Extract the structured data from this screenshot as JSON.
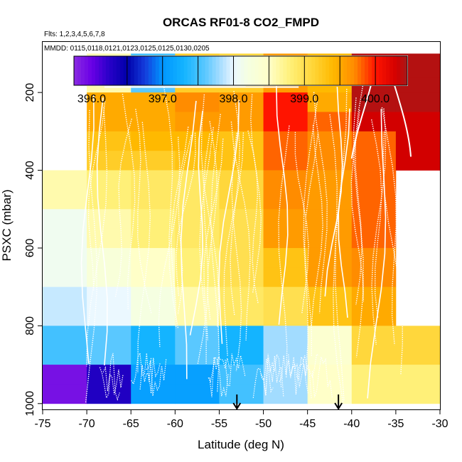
{
  "chart_data": {
    "type": "heatmap",
    "title": "ORCAS RF01-8 CO2_FMPD",
    "flights_label": "Flts: 1,2,3,4,5,6,7,8",
    "mmdd_label": "MMDD: 0115,0118,0121,0123,0125,0125,0130,0205",
    "xlabel": "Latitude (deg N)",
    "ylabel": "PSXC (mbar)",
    "xlim": [
      -75,
      -30
    ],
    "ylim": [
      1015,
      70
    ],
    "x_ticks": [
      -75,
      -70,
      -65,
      -60,
      -55,
      -50,
      -45,
      -40,
      -35,
      -30
    ],
    "x_tick_labels": [
      "-75",
      "-70",
      "-65",
      "-60",
      "-55",
      "-50",
      "-45",
      "-40",
      "-35",
      "-30"
    ],
    "y_ticks": [
      200,
      400,
      600,
      800,
      1000
    ],
    "y_tick_labels": [
      "200",
      "400",
      "600",
      "800",
      "1000"
    ],
    "colorbar": {
      "min": 395.75,
      "max": 400.45,
      "ticks": [
        396.0,
        397.0,
        398.0,
        399.0,
        400.0
      ],
      "tick_labels": [
        "396.0",
        "397.0",
        "398.0",
        "399.0",
        "400.0"
      ],
      "major_lines": [
        396.5,
        397.0,
        397.5,
        398.0,
        398.5,
        399.0,
        399.5,
        400.0
      ]
    },
    "x_bins": [
      -75,
      -70,
      -65,
      -60,
      -55,
      -50,
      -45,
      -40,
      -35
    ],
    "x_bin_width": 5,
    "p_bins": [
      [
        100,
        160
      ],
      [
        160,
        200
      ],
      [
        200,
        250
      ],
      [
        250,
        300
      ],
      [
        300,
        350
      ],
      [
        350,
        400
      ],
      [
        400,
        450
      ],
      [
        450,
        500
      ],
      [
        500,
        550
      ],
      [
        550,
        600
      ],
      [
        600,
        650
      ],
      [
        650,
        700
      ],
      [
        700,
        750
      ],
      [
        750,
        800
      ],
      [
        800,
        850
      ],
      [
        850,
        900
      ],
      [
        900,
        950
      ],
      [
        950,
        1000
      ]
    ],
    "cells": [
      [
        null,
        398.6,
        397.5,
        399.2,
        399.1,
        399.6,
        399.4,
        400.4,
        400.4
      ],
      [
        null,
        398.6,
        397.6,
        399.2,
        399.2,
        399.6,
        399.4,
        400.4,
        400.4
      ],
      [
        null,
        399.5,
        399.5,
        399.7,
        399.6,
        400.0,
        399.5,
        400.4,
        400.4
      ],
      [
        null,
        399.5,
        399.5,
        399.6,
        399.6,
        400.0,
        399.8,
        400.3,
        400.3
      ],
      [
        null,
        399.3,
        399.4,
        399.4,
        399.3,
        399.8,
        399.7,
        399.8,
        400.3
      ],
      [
        null,
        399.2,
        399.2,
        399.3,
        399.3,
        399.8,
        399.7,
        399.8,
        400.3
      ],
      [
        398.6,
        398.8,
        398.9,
        398.9,
        399.1,
        399.7,
        399.6,
        399.8,
        null
      ],
      [
        398.6,
        398.8,
        398.9,
        398.9,
        399.1,
        399.7,
        399.6,
        399.8,
        null
      ],
      [
        398.1,
        398.6,
        398.8,
        398.9,
        399.0,
        399.6,
        399.6,
        399.8,
        null
      ],
      [
        398.1,
        398.6,
        398.8,
        398.9,
        399.0,
        399.6,
        399.6,
        399.8,
        null
      ],
      [
        398.1,
        398.3,
        398.5,
        398.8,
        399.0,
        399.3,
        399.6,
        399.7,
        null
      ],
      [
        398.1,
        398.3,
        398.5,
        398.8,
        399.0,
        399.3,
        399.6,
        399.7,
        null
      ],
      [
        397.9,
        398.0,
        398.2,
        398.6,
        398.9,
        399.0,
        399.3,
        399.5,
        null
      ],
      [
        397.9,
        398.0,
        398.2,
        398.6,
        398.9,
        399.0,
        399.3,
        399.5,
        null
      ],
      [
        397.5,
        397.6,
        397.3,
        397.6,
        397.3,
        397.8,
        398.4,
        399.1,
        399.1
      ],
      [
        397.5,
        397.6,
        397.3,
        397.6,
        397.3,
        397.8,
        398.4,
        399.1,
        399.1
      ],
      [
        395.9,
        396.3,
        397.1,
        397.1,
        397.5,
        397.8,
        398.5,
        398.8,
        398.8
      ],
      [
        395.9,
        396.3,
        397.1,
        397.1,
        397.5,
        397.8,
        398.5,
        398.8,
        398.8
      ]
    ],
    "arrows_x": [
      -53.0,
      -41.5
    ],
    "flight_track_color": "#ffffff"
  }
}
